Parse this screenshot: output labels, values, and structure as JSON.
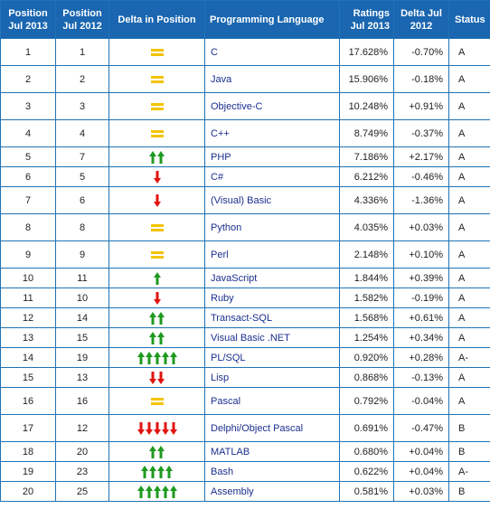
{
  "headers": {
    "pos_2013": "Position Jul 2013",
    "pos_2012": "Position Jul 2012",
    "delta_pos": "Delta in Position",
    "language": "Programming Language",
    "ratings": "Ratings Jul 2013",
    "delta": "Delta Jul 2012",
    "status": "Status"
  },
  "colors": {
    "header_bg": "#1a66b0",
    "border": "#1e73b5",
    "link": "#1b2f8f",
    "up": "#1f9a1f",
    "down": "#e0140f",
    "same": "#f3c300"
  },
  "rows": [
    {
      "p13": "1",
      "p12": "1",
      "trend": "same",
      "arrows": 0,
      "lang": "C",
      "rating": "17.628%",
      "delta": "-0.70%",
      "status": "A"
    },
    {
      "p13": "2",
      "p12": "2",
      "trend": "same",
      "arrows": 0,
      "lang": "Java",
      "rating": "15.906%",
      "delta": "-0.18%",
      "status": "A"
    },
    {
      "p13": "3",
      "p12": "3",
      "trend": "same",
      "arrows": 0,
      "lang": "Objective-C",
      "rating": "10.248%",
      "delta": "+0.91%",
      "status": "A"
    },
    {
      "p13": "4",
      "p12": "4",
      "trend": "same",
      "arrows": 0,
      "lang": "C++",
      "rating": "8.749%",
      "delta": "-0.37%",
      "status": "A"
    },
    {
      "p13": "5",
      "p12": "7",
      "trend": "up",
      "arrows": 2,
      "lang": "PHP",
      "rating": "7.186%",
      "delta": "+2.17%",
      "status": "A"
    },
    {
      "p13": "6",
      "p12": "5",
      "trend": "down",
      "arrows": 1,
      "lang": "C#",
      "rating": "6.212%",
      "delta": "-0.46%",
      "status": "A"
    },
    {
      "p13": "7",
      "p12": "6",
      "trend": "down",
      "arrows": 1,
      "lang": "(Visual) Basic",
      "rating": "4.336%",
      "delta": "-1.36%",
      "status": "A"
    },
    {
      "p13": "8",
      "p12": "8",
      "trend": "same",
      "arrows": 0,
      "lang": "Python",
      "rating": "4.035%",
      "delta": "+0.03%",
      "status": "A"
    },
    {
      "p13": "9",
      "p12": "9",
      "trend": "same",
      "arrows": 0,
      "lang": "Perl",
      "rating": "2.148%",
      "delta": "+0.10%",
      "status": "A"
    },
    {
      "p13": "10",
      "p12": "11",
      "trend": "up",
      "arrows": 1,
      "lang": "JavaScript",
      "rating": "1.844%",
      "delta": "+0.39%",
      "status": "A"
    },
    {
      "p13": "11",
      "p12": "10",
      "trend": "down",
      "arrows": 1,
      "lang": "Ruby",
      "rating": "1.582%",
      "delta": "-0.19%",
      "status": "A"
    },
    {
      "p13": "12",
      "p12": "14",
      "trend": "up",
      "arrows": 2,
      "lang": "Transact-SQL",
      "rating": "1.568%",
      "delta": "+0.61%",
      "status": "A"
    },
    {
      "p13": "13",
      "p12": "15",
      "trend": "up",
      "arrows": 2,
      "lang": "Visual Basic .NET",
      "rating": "1.254%",
      "delta": "+0.34%",
      "status": "A"
    },
    {
      "p13": "14",
      "p12": "19",
      "trend": "up",
      "arrows": 5,
      "lang": "PL/SQL",
      "rating": "0.920%",
      "delta": "+0.28%",
      "status": "A-"
    },
    {
      "p13": "15",
      "p12": "13",
      "trend": "down",
      "arrows": 2,
      "lang": "Lisp",
      "rating": "0.868%",
      "delta": "-0.13%",
      "status": "A"
    },
    {
      "p13": "16",
      "p12": "16",
      "trend": "same",
      "arrows": 0,
      "lang": "Pascal",
      "rating": "0.792%",
      "delta": "-0.04%",
      "status": "A"
    },
    {
      "p13": "17",
      "p12": "12",
      "trend": "down",
      "arrows": 5,
      "lang": "Delphi/Object Pascal",
      "rating": "0.691%",
      "delta": "-0.47%",
      "status": "B"
    },
    {
      "p13": "18",
      "p12": "20",
      "trend": "up",
      "arrows": 2,
      "lang": "MATLAB",
      "rating": "0.680%",
      "delta": "+0.04%",
      "status": "B"
    },
    {
      "p13": "19",
      "p12": "23",
      "trend": "up",
      "arrows": 4,
      "lang": "Bash",
      "rating": "0.622%",
      "delta": "+0.04%",
      "status": "A-"
    },
    {
      "p13": "20",
      "p12": "25",
      "trend": "up",
      "arrows": 5,
      "lang": "Assembly",
      "rating": "0.581%",
      "delta": "+0.03%",
      "status": "B"
    }
  ]
}
